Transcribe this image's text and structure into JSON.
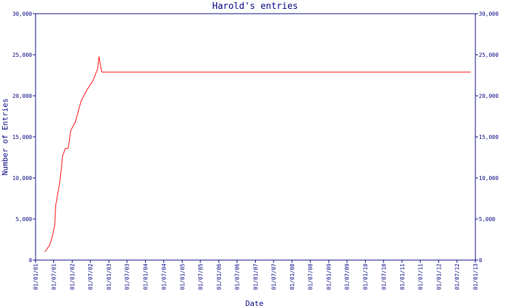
{
  "chart_data": {
    "type": "line",
    "title": "Harold's entries",
    "x_label": "Date",
    "y_label": "Number of Entries",
    "color": "#ff0000",
    "axis_color": "#000080",
    "x": [
      "04/04/01",
      "20/05/01",
      "18/06/01",
      "10/07/01",
      "21/07/01",
      "01/09/01",
      "28/09/01",
      "25/10/01",
      "22/11/01",
      "18/12/01",
      "01/02/02",
      "01/04/02",
      "01/06/02",
      "25/07/02",
      "12/09/02",
      "25/09/02",
      "22/10/02",
      "15/11/12"
    ],
    "values": [
      1000,
      1800,
      2900,
      4200,
      6700,
      9600,
      12700,
      13600,
      13600,
      15800,
      16800,
      19400,
      20800,
      21800,
      23300,
      24800,
      22900,
      22900
    ],
    "xlim": [
      "01/01/01",
      "01/01/13"
    ],
    "xticks": [
      "01/01/01",
      "01/07/01",
      "01/01/02",
      "01/07/02",
      "01/01/03",
      "01/07/03",
      "01/01/04",
      "01/07/04",
      "01/01/05",
      "01/07/05",
      "01/01/06",
      "01/07/06",
      "01/01/07",
      "01/07/07",
      "01/01/08",
      "01/07/08",
      "01/01/09",
      "01/07/09",
      "01/01/10",
      "01/07/10",
      "01/01/11",
      "01/07/11",
      "01/01/12",
      "01/07/12",
      "01/01/13"
    ],
    "ylim": [
      0,
      30000
    ],
    "yticks": [
      0,
      {
        "value": 5000,
        "label": "5,000"
      },
      {
        "value": 10000,
        "label": "10,000"
      },
      {
        "value": 15000,
        "label": "15,000"
      },
      {
        "value": 20000,
        "label": "20,000"
      },
      {
        "value": 25000,
        "label": "25,000"
      },
      {
        "value": 30000,
        "label": "30,000"
      }
    ]
  }
}
